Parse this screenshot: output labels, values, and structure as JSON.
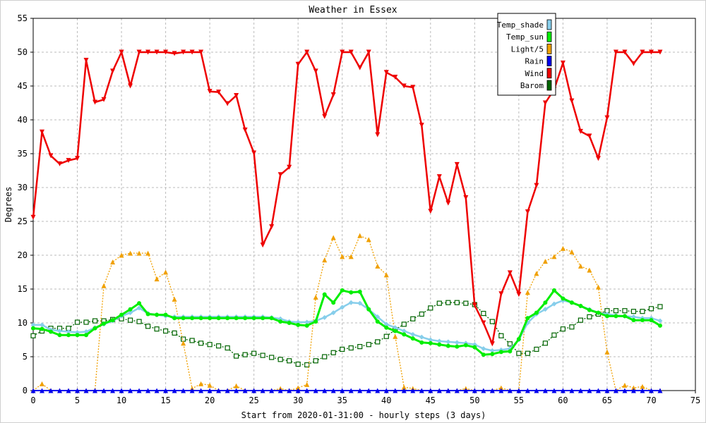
{
  "chart_data": {
    "type": "line",
    "title": "Weather in Essex",
    "xlabel": "Start from 2020-01-31:00 - hourly steps (3 days)",
    "ylabel": "Degrees",
    "xlim": [
      0,
      75
    ],
    "ylim": [
      0,
      55
    ],
    "x_ticks": [
      0,
      5,
      10,
      15,
      20,
      25,
      30,
      35,
      40,
      45,
      50,
      55,
      60,
      65,
      70,
      75
    ],
    "y_ticks": [
      0,
      5,
      10,
      15,
      20,
      25,
      30,
      35,
      40,
      45,
      50,
      55
    ],
    "grid": true,
    "legend_position": "top-right",
    "x": [
      0,
      1,
      2,
      3,
      4,
      5,
      6,
      7,
      8,
      9,
      10,
      11,
      12,
      13,
      14,
      15,
      16,
      17,
      18,
      19,
      20,
      21,
      22,
      23,
      24,
      25,
      26,
      27,
      28,
      29,
      30,
      31,
      32,
      33,
      34,
      35,
      36,
      37,
      38,
      39,
      40,
      41,
      42,
      43,
      44,
      45,
      46,
      47,
      48,
      49,
      50,
      51,
      52,
      53,
      54,
      55,
      56,
      57,
      58,
      59,
      60,
      61,
      62,
      63,
      64,
      65,
      66,
      67,
      68,
      69,
      70,
      71
    ],
    "series": [
      {
        "name": "Temp_shade",
        "color": "#87ceeb",
        "marker": "diamond",
        "values": [
          9.7,
          9.7,
          9.0,
          8.8,
          8.7,
          8.6,
          8.7,
          9.3,
          9.8,
          10.3,
          11.0,
          11.5,
          12.2,
          11.4,
          11.2,
          11.0,
          10.9,
          10.9,
          10.9,
          10.9,
          10.9,
          10.9,
          10.9,
          10.9,
          10.9,
          10.9,
          10.9,
          10.8,
          10.6,
          10.2,
          10.1,
          10.1,
          10.3,
          10.8,
          11.5,
          12.3,
          13.0,
          12.9,
          12.0,
          10.9,
          9.8,
          9.3,
          8.8,
          8.3,
          7.9,
          7.5,
          7.3,
          7.2,
          7.1,
          7.0,
          6.8,
          6.2,
          5.9,
          6.0,
          6.2,
          7.5,
          10.0,
          11.3,
          12.0,
          12.8,
          13.3,
          13.0,
          12.5,
          12.0,
          11.5,
          11.3,
          11.1,
          11.0,
          10.9,
          10.7,
          10.7,
          10.3
        ]
      },
      {
        "name": "Temp_sun",
        "color": "#00ee00",
        "marker": "circle",
        "values": [
          9.2,
          9.1,
          8.7,
          8.2,
          8.2,
          8.2,
          8.2,
          9.2,
          9.9,
          10.4,
          11.2,
          12.0,
          12.9,
          11.3,
          11.2,
          11.2,
          10.7,
          10.7,
          10.7,
          10.7,
          10.7,
          10.7,
          10.7,
          10.7,
          10.7,
          10.7,
          10.7,
          10.7,
          10.2,
          10.0,
          9.7,
          9.6,
          10.2,
          14.2,
          13.0,
          14.8,
          14.5,
          14.6,
          12.0,
          10.2,
          9.3,
          8.8,
          8.3,
          7.7,
          7.1,
          7.0,
          6.8,
          6.6,
          6.5,
          6.7,
          6.4,
          5.3,
          5.4,
          5.7,
          5.8,
          7.6,
          10.7,
          11.5,
          13.0,
          14.8,
          13.6,
          13.0,
          12.5,
          11.9,
          11.5,
          11.0,
          11.0,
          11.0,
          10.4,
          10.4,
          10.4,
          9.6
        ]
      },
      {
        "name": "Light/5",
        "color": "#f0a000",
        "marker": "triangle-up",
        "values": [
          0,
          1.0,
          0,
          0,
          0,
          0,
          0,
          0,
          15.5,
          19.0,
          20.0,
          20.3,
          20.3,
          20.3,
          16.5,
          17.5,
          13.5,
          7.0,
          0.3,
          1.0,
          0.8,
          0,
          0,
          0.7,
          0,
          0,
          0,
          0,
          0.3,
          0,
          0.4,
          0.9,
          13.8,
          19.3,
          22.6,
          19.8,
          19.8,
          22.9,
          22.3,
          18.4,
          17.1,
          8.0,
          0.5,
          0.3,
          0,
          0,
          0,
          0,
          0,
          0.3,
          0,
          0,
          0,
          0.4,
          0,
          0,
          14.5,
          17.3,
          19.1,
          19.8,
          21.0,
          20.5,
          18.4,
          17.8,
          15.3,
          5.7,
          0,
          0.8,
          0.4,
          0.6,
          0,
          0
        ]
      },
      {
        "name": "Rain",
        "color": "#0000ee",
        "marker": "triangle-up",
        "values": [
          0,
          0,
          0,
          0,
          0,
          0,
          0,
          0,
          0,
          0,
          0,
          0,
          0,
          0,
          0,
          0,
          0,
          0,
          0,
          0,
          0,
          0,
          0,
          0,
          0,
          0,
          0,
          0,
          0,
          0,
          0,
          0,
          0,
          0,
          0,
          0,
          0,
          0,
          0,
          0,
          0,
          0,
          0,
          0,
          0,
          0,
          0,
          0,
          0,
          0,
          0,
          0,
          0,
          0,
          0,
          0,
          0,
          0,
          0,
          0,
          0,
          0,
          0,
          0,
          0,
          0,
          0,
          0,
          0,
          0,
          0,
          0
        ]
      },
      {
        "name": "Wind",
        "color": "#ee0000",
        "marker": "triangle-down",
        "values": [
          25.6,
          38.2,
          34.7,
          33.5,
          34.0,
          34.3,
          48.8,
          42.6,
          43.0,
          47.2,
          50.0,
          45.0,
          50.0,
          50.0,
          50.0,
          50.0,
          49.8,
          50.0,
          50.0,
          50.0,
          44.2,
          44.1,
          42.4,
          43.6,
          38.5,
          35.1,
          21.5,
          24.2,
          31.9,
          33.0,
          48.2,
          50.0,
          47.2,
          40.5,
          43.7,
          50.0,
          50.0,
          47.7,
          50.0,
          37.8,
          47.0,
          46.3,
          45.0,
          44.8,
          39.2,
          26.5,
          31.6,
          27.7,
          33.4,
          28.5,
          12.6,
          10.0,
          6.9,
          14.3,
          17.4,
          14.2,
          26.4,
          30.3,
          42.5,
          44.5,
          48.4,
          42.8,
          38.3,
          37.6,
          34.3,
          40.3,
          50.0,
          50.0,
          48.3,
          50.0,
          50.0,
          50.0
        ]
      },
      {
        "name": "Barom",
        "color": "#006400",
        "marker": "square",
        "values": [
          8.1,
          8.8,
          9.2,
          9.2,
          9.2,
          10.1,
          10.1,
          10.3,
          10.3,
          10.5,
          10.6,
          10.4,
          10.2,
          9.5,
          9.1,
          8.8,
          8.5,
          7.6,
          7.4,
          7.0,
          6.8,
          6.6,
          6.3,
          5.1,
          5.3,
          5.5,
          5.2,
          4.9,
          4.6,
          4.4,
          3.9,
          3.8,
          4.4,
          5.0,
          5.6,
          6.1,
          6.3,
          6.5,
          6.8,
          7.2,
          8.0,
          9.0,
          9.8,
          10.6,
          11.3,
          12.2,
          12.9,
          13.0,
          13.0,
          12.9,
          12.7,
          11.4,
          10.2,
          8.1,
          6.9,
          5.5,
          5.5,
          6.1,
          7.0,
          8.2,
          9.1,
          9.4,
          10.4,
          10.9,
          11.3,
          11.8,
          11.8,
          11.8,
          11.7,
          11.7,
          12.1,
          12.4
        ]
      }
    ]
  }
}
